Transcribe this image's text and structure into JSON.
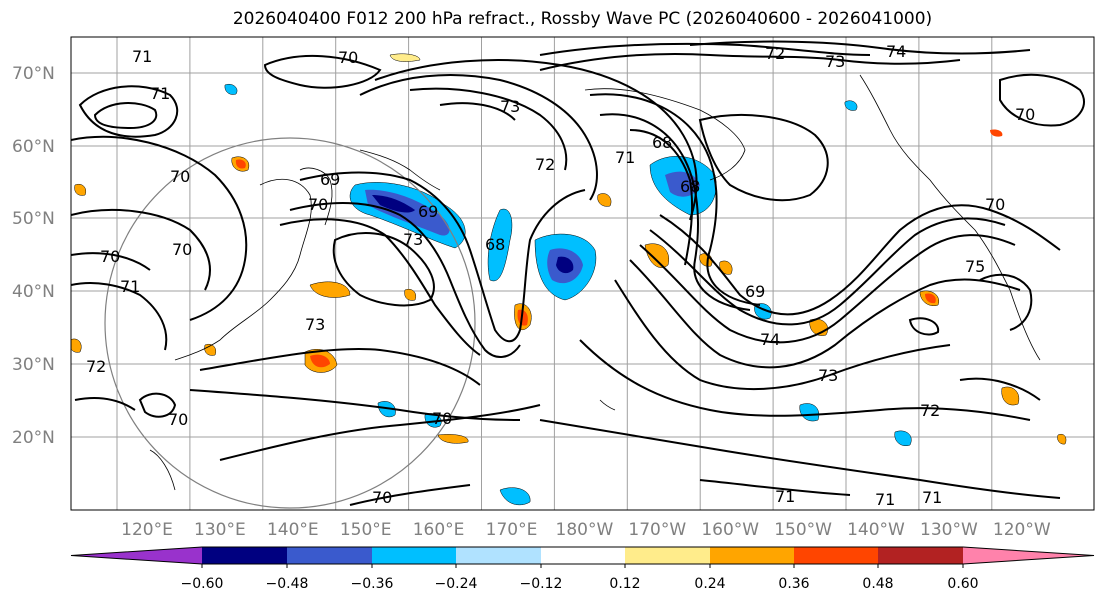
{
  "title": "2026040400 F012 200 hPa refract., Rossby Wave PC (2026040600 - 2026041000)",
  "lat_labels": [
    "70°N",
    "60°N",
    "50°N",
    "40°N",
    "30°N",
    "20°N"
  ],
  "lon_labels": [
    "120°E",
    "130°E",
    "140°E",
    "150°E",
    "160°E",
    "170°E",
    "180°W",
    "170°W",
    "160°W",
    "150°W",
    "140°W",
    "130°W",
    "120°W"
  ],
  "colorbar": {
    "ticks": [
      "−0.60",
      "−0.48",
      "−0.36",
      "−0.24",
      "−0.12",
      "0.12",
      "0.24",
      "0.36",
      "0.48",
      "0.60"
    ],
    "colors": [
      "#9932CC",
      "#000080",
      "#3A5ACD",
      "#00BFFF",
      "#B0E2FF",
      "#FFFFFF",
      "#FFEC8B",
      "#FFA500",
      "#FF4500",
      "#B22222",
      "#FF82AB"
    ]
  },
  "contour_labels": [
    "71",
    "70",
    "72",
    "73",
    "74",
    "73",
    "71",
    "70",
    "69",
    "68",
    "71",
    "68",
    "72",
    "69",
    "70",
    "70",
    "73",
    "68",
    "70",
    "71",
    "70",
    "72",
    "73",
    "75",
    "70",
    "69",
    "74",
    "73",
    "72",
    "70",
    "70",
    "70",
    "71",
    "71",
    "71"
  ]
}
